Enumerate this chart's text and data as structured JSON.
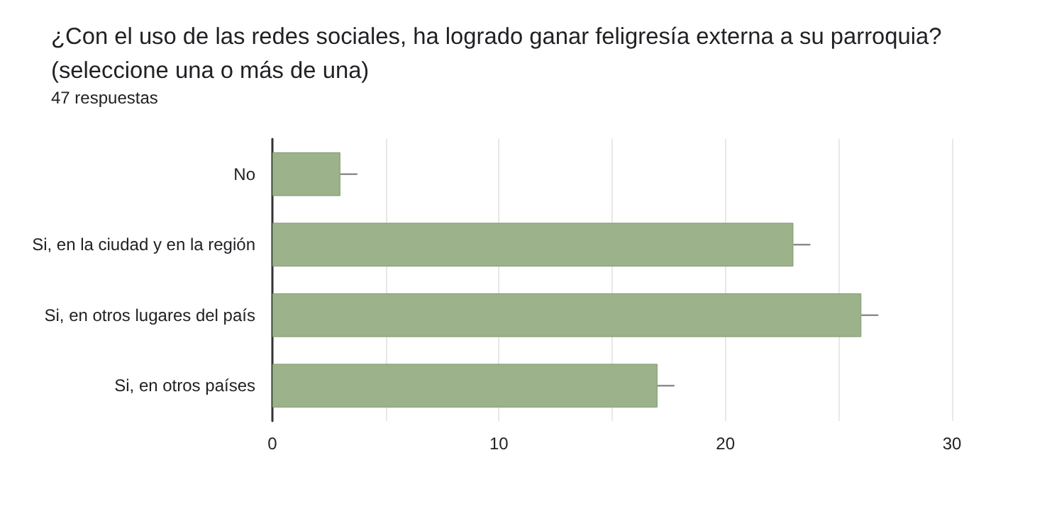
{
  "chart_data": {
    "type": "bar",
    "orientation": "horizontal",
    "title": "¿Con el uso de las redes sociales, ha logrado ganar feligresía externa a su parroquia? (seleccione una o más de una)",
    "subtitle": "47 respuestas",
    "categories": [
      "No",
      "Si, en la ciudad y en la región",
      "Si, en otros lugares del país",
      "Si, en otros países"
    ],
    "values": [
      3,
      23,
      26,
      17
    ],
    "color": "#9bb28b",
    "errors": [
      [
        3,
        3.75
      ],
      [
        23,
        23.75
      ],
      [
        26,
        26.75
      ],
      [
        17,
        17.75
      ]
    ],
    "xlim": [
      0,
      30
    ],
    "xticks": [
      0,
      {
        "value": 5,
        "label": null
      },
      10,
      {
        "value": 15,
        "label": null
      },
      20,
      {
        "value": 25,
        "label": null
      },
      30
    ],
    "grid": "x"
  }
}
